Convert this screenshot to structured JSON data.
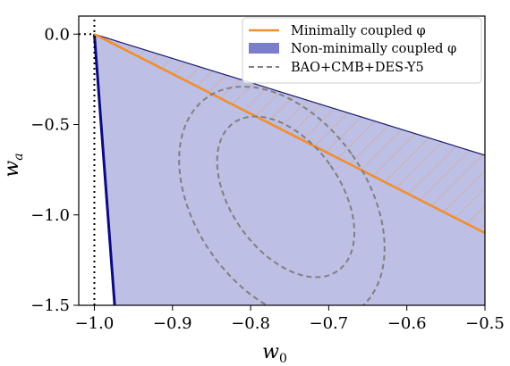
{
  "chart_data": {
    "type": "area",
    "xlabel": "w",
    "xlabel_sub": "0",
    "ylabel": "w",
    "ylabel_sub": "a",
    "xlim": [
      -1.02,
      -0.5
    ],
    "ylim": [
      -1.5,
      0.1
    ],
    "xticks": [
      -1.0,
      -0.9,
      -0.8,
      -0.7,
      -0.6,
      -0.5
    ],
    "xtick_labels": [
      "−1.0",
      "−0.9",
      "−0.8",
      "−0.7",
      "−0.6",
      "−0.5"
    ],
    "yticks": [
      0.0,
      -0.5,
      -1.0,
      -1.5
    ],
    "ytick_labels": [
      "0.0",
      "−0.5",
      "−1.0",
      "−1.5"
    ],
    "grid": false,
    "legend_position": "top-right",
    "reference_lines": {
      "x": -1.0,
      "y": 0.0
    },
    "series": [
      {
        "name": "Minimally coupled φ",
        "kind": "line",
        "color": "#f28e2b",
        "points": [
          [
            -1.0,
            0.0
          ],
          [
            -0.5,
            -1.1
          ]
        ]
      },
      {
        "name": "Non-minimally coupled φ",
        "kind": "region",
        "color": "#7b7fcb",
        "boundary_upper": [
          [
            -1.0,
            0.0
          ],
          [
            -0.5,
            -0.67
          ]
        ],
        "boundary_left": [
          [
            -1.0,
            0.0
          ],
          [
            -0.974,
            -1.5
          ]
        ],
        "hatched_band": [
          [
            -1.0,
            0.0
          ],
          [
            -0.5,
            -0.67
          ],
          [
            -0.5,
            -1.1
          ]
        ]
      },
      {
        "name": "BAO+CMB+DES-Y5",
        "kind": "contours",
        "color": "#808080",
        "style": "dashed",
        "ellipses": [
          {
            "center": [
              -0.755,
              -0.9
            ],
            "semi_axes": [
              0.07,
              0.5
            ],
            "label": "inner"
          },
          {
            "center": [
              -0.76,
              -0.94
            ],
            "semi_axes": [
              0.11,
              0.72
            ],
            "label": "outer"
          }
        ]
      }
    ]
  },
  "legend": {
    "items": [
      {
        "label": "Minimally coupled φ",
        "swatch": "line",
        "color": "#f28e2b"
      },
      {
        "label": "Non-minimally coupled φ",
        "swatch": "patch",
        "color": "#7b7fcb"
      },
      {
        "label": "BAO+CMB+DES-Y5",
        "swatch": "dashed",
        "color": "#808080"
      }
    ]
  }
}
